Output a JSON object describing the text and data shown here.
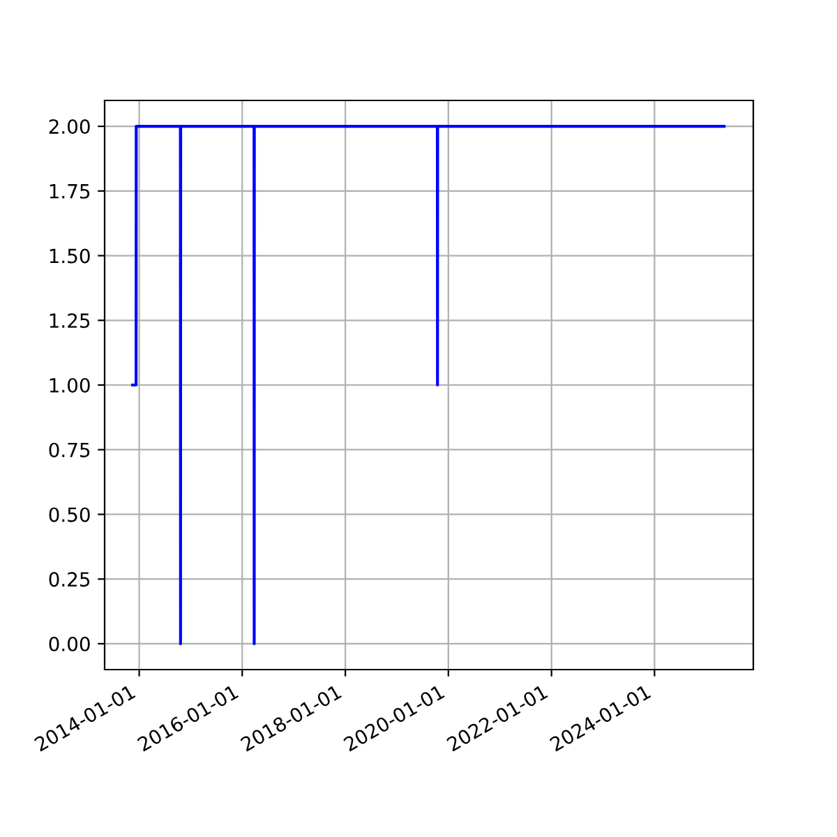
{
  "chart_data": {
    "type": "line",
    "x": [
      "2013-11-15",
      "2013-12-10",
      "2013-12-11",
      "2014-10-20",
      "2014-10-21",
      "2014-10-22",
      "2016-03-25",
      "2016-03-26",
      "2016-03-27",
      "2019-10-15",
      "2019-10-16",
      "2019-10-17",
      "2025-05-08"
    ],
    "series": [
      {
        "color": "#0000ff",
        "values": [
          1,
          1,
          2,
          2,
          0,
          2,
          2,
          0,
          2,
          2,
          1,
          2,
          2
        ]
      }
    ],
    "xlim": [
      "2013-05-01",
      "2025-12-01"
    ],
    "xticks": [
      "2014-01-01",
      "2016-01-01",
      "2018-01-01",
      "2020-01-01",
      "2022-01-01",
      "2024-01-01"
    ],
    "ylim": [
      -0.1,
      2.1
    ],
    "yticks": [
      {
        "value": 0,
        "label": "0.00"
      },
      {
        "value": 0.25,
        "label": "0.25"
      },
      {
        "value": 0.5,
        "label": "0.50"
      },
      {
        "value": 0.75,
        "label": "0.75"
      },
      {
        "value": 1,
        "label": "1.00"
      },
      {
        "value": 1.25,
        "label": "1.25"
      },
      {
        "value": 1.5,
        "label": "1.50"
      },
      {
        "value": 1.75,
        "label": "1.75"
      },
      {
        "value": 2,
        "label": "2.00"
      }
    ],
    "grid": true
  }
}
